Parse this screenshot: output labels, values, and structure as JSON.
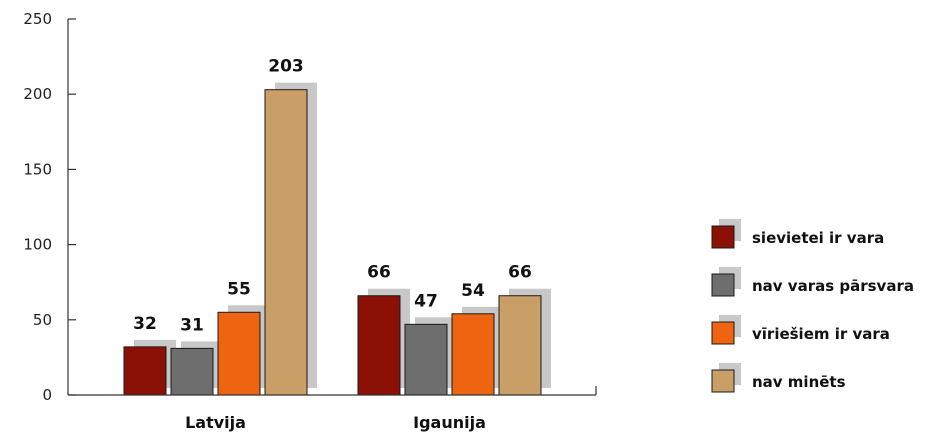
{
  "chart_data": {
    "type": "bar",
    "categories": [
      "Latvija",
      "Igaunija"
    ],
    "series": [
      {
        "name": "sievietei ir vara",
        "values": [
          32,
          66
        ],
        "color": "#8b1106"
      },
      {
        "name": "nav varas pārsvara",
        "values": [
          31,
          47
        ],
        "color": "#6e6e6e"
      },
      {
        "name": "vīriešiem ir vara",
        "values": [
          55,
          54
        ],
        "color": "#ee6410"
      },
      {
        "name": "nav minēts",
        "values": [
          203,
          66
        ],
        "color": "#c99e67"
      }
    ],
    "ylim": [
      0,
      250
    ],
    "yticks": [
      "0",
      "50",
      "100",
      "150",
      "200",
      "250"
    ],
    "title": "",
    "xlabel": "",
    "ylabel": "",
    "grid": false,
    "legend": "right",
    "shadow_color": "#c8c8c8"
  }
}
